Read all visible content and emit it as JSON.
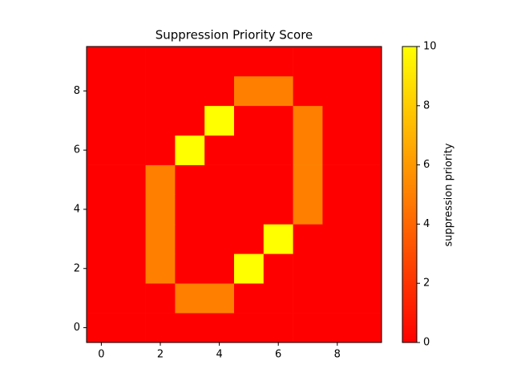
{
  "chart_data": {
    "type": "heatmap",
    "title": "Suppression Priority Score",
    "colorbar_label": "suppression priority",
    "colormap": "autumn",
    "xlim": [
      -0.5,
      9.5
    ],
    "ylim": [
      -0.5,
      9.5
    ],
    "xticks": [
      0,
      2,
      4,
      6,
      8
    ],
    "yticks": [
      0,
      2,
      4,
      6,
      8
    ],
    "zlim": [
      0,
      10
    ],
    "zticks": [
      0,
      2,
      4,
      6,
      8,
      10
    ],
    "z": [
      [
        0,
        0,
        0,
        0,
        0,
        0,
        0,
        0,
        0,
        0
      ],
      [
        0,
        0,
        0,
        5,
        5,
        0,
        0,
        0,
        0,
        0
      ],
      [
        0,
        0,
        5,
        0,
        0,
        10,
        0,
        0,
        0,
        0
      ],
      [
        0,
        0,
        5,
        0,
        0,
        0,
        10,
        0,
        0,
        0
      ],
      [
        0,
        0,
        5,
        0,
        0,
        0,
        0,
        5,
        0,
        0
      ],
      [
        0,
        0,
        5,
        0,
        0,
        0,
        0,
        5,
        0,
        0
      ],
      [
        0,
        0,
        0,
        10,
        0,
        0,
        0,
        5,
        0,
        0
      ],
      [
        0,
        0,
        0,
        0,
        10,
        0,
        0,
        5,
        0,
        0
      ],
      [
        0,
        0,
        0,
        0,
        0,
        5,
        5,
        0,
        0,
        0
      ],
      [
        0,
        0,
        0,
        0,
        0,
        0,
        0,
        0,
        0,
        0
      ]
    ]
  }
}
